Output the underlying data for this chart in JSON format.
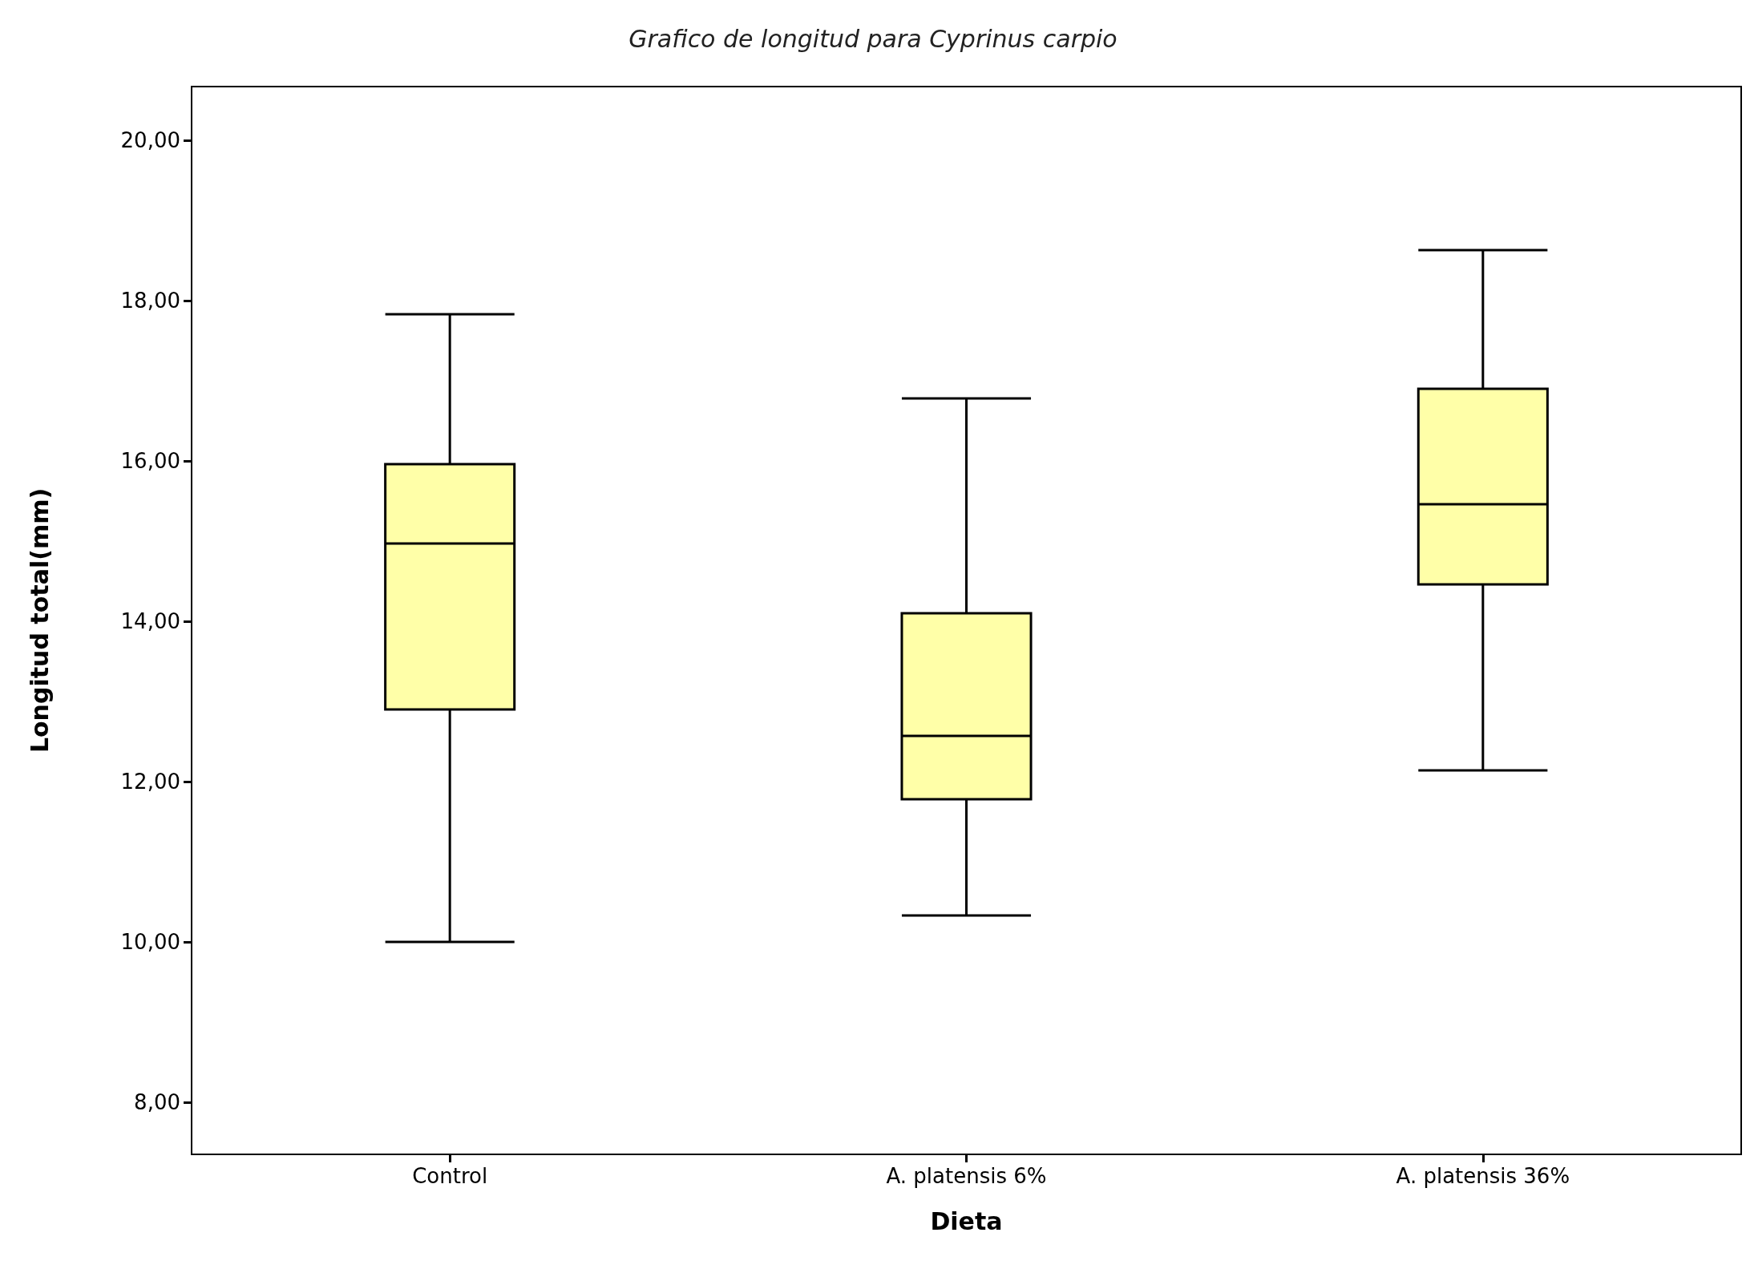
{
  "chart_data": {
    "type": "box",
    "title": "Grafico de longitud para Cyprinus carpio",
    "xlabel": "Dieta",
    "ylabel": "Longitud total(mm)",
    "categories": [
      "Control",
      "A. platensis 6%",
      "A. platensis 36%"
    ],
    "color": "#ffffa8",
    "boxes": [
      {
        "low": 10.0,
        "q1": 12.9,
        "median": 14.97,
        "q3": 15.96,
        "high": 17.83
      },
      {
        "low": 10.33,
        "q1": 11.78,
        "median": 12.57,
        "q3": 14.1,
        "high": 16.78
      },
      {
        "low": 12.14,
        "q1": 14.46,
        "median": 15.46,
        "q3": 16.9,
        "high": 18.63
      }
    ],
    "ylim": [
      7.35,
      20.67
    ],
    "yticks": [
      {
        "value": 8,
        "label": "8,00"
      },
      {
        "value": 10,
        "label": "10,00"
      },
      {
        "value": 12,
        "label": "12,00"
      },
      {
        "value": 14,
        "label": "14,00"
      },
      {
        "value": 16,
        "label": "16,00"
      },
      {
        "value": 18,
        "label": "18,00"
      },
      {
        "value": 20,
        "label": "20,00"
      }
    ],
    "grid": false
  }
}
